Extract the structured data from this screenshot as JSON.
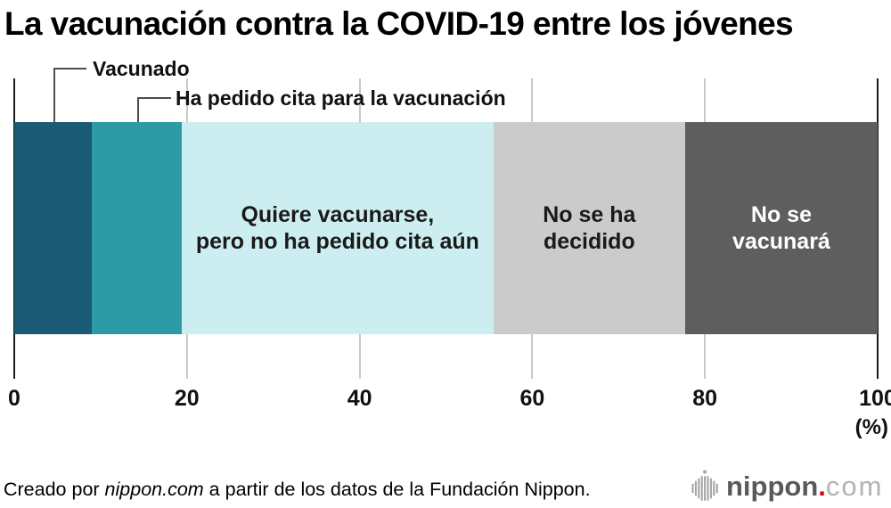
{
  "title": "La vacunación contra la COVID-19 entre los jóvenes",
  "chart_data": {
    "type": "bar",
    "subtype": "horizontal-stacked-100",
    "unit": "%",
    "xlim": [
      0,
      100
    ],
    "x_ticks": [
      "0",
      "20",
      "40",
      "60",
      "80",
      "100"
    ],
    "axis_unit_label": "(%)",
    "grid": "vertical-light-gray, black edge lines at 0 and 100",
    "series": [
      {
        "label": "Vacunado",
        "value": 9.0,
        "color": "#1a5a74",
        "label_placement": "callout",
        "text_color": "#111111"
      },
      {
        "label": "Ha pedido cita para la vacunación",
        "value": 10.4,
        "color": "#2e9aa5",
        "label_placement": "callout",
        "text_color": "#111111"
      },
      {
        "label": "Quiere vacunarse,\npero no ha pedido cita aún",
        "value": 36.1,
        "color": "#cdeef1",
        "label_placement": "inside",
        "text_color": "#1a1a1a"
      },
      {
        "label": "No se ha\ndecidido",
        "value": 22.2,
        "color": "#cbcbcb",
        "label_placement": "inside",
        "text_color": "#1a1a1a"
      },
      {
        "label": "No se\nvacunará",
        "value": 22.3,
        "color": "#5e5e5e",
        "label_placement": "inside",
        "text_color": "#ffffff"
      }
    ]
  },
  "footer": {
    "credit_prefix": "Creado por ",
    "credit_source": "nippon.com",
    "credit_suffix": " a partir de los datos de la Fundación Nippon.",
    "logo": {
      "name": "nippon.com logo",
      "text_main": "nippon",
      "text_dot": ".",
      "text_tld": "com",
      "main_color": "#595959",
      "dot_color": "#e60012",
      "tld_color": "#b2b2b2",
      "mark_color": "#a6a6a6"
    }
  }
}
